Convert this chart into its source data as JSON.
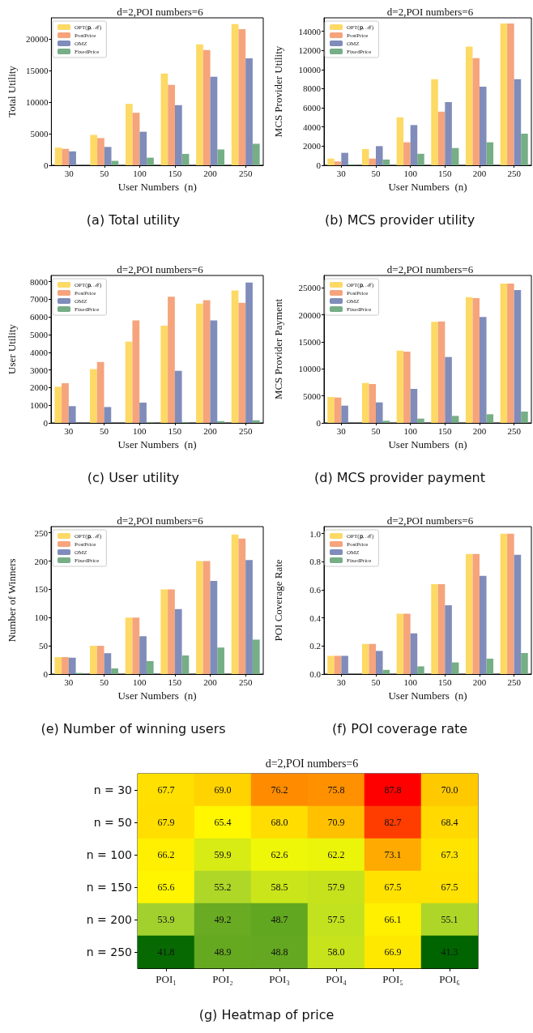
{
  "chart_data": [
    {
      "type": "bar",
      "title": "d=2,POI numbers=6",
      "xlabel": "User Numbers  (n)",
      "ylabel": "Total Utility",
      "categories": [
        "30",
        "50",
        "100",
        "150",
        "200",
        "250"
      ],
      "legend": "top left",
      "ylim": [
        0,
        23300
      ],
      "yticks": [
        0,
        5000,
        10000,
        15000,
        20000
      ],
      "annotations": [
        "(a)  Total utility"
      ],
      "series": [
        {
          "name": "OPT(𝐩, ℳ)",
          "color": "#fdd966",
          "values": [
            2800,
            4800,
            9700,
            14500,
            19100,
            22300
          ]
        },
        {
          "name": "PostPrice",
          "color": "#f5a47c",
          "values": [
            2600,
            4300,
            8300,
            12700,
            18200,
            21500
          ]
        },
        {
          "name": "OMZ",
          "color": "#808cba",
          "values": [
            2200,
            2900,
            5300,
            9500,
            14000,
            16900
          ]
        },
        {
          "name": "FixedPrice",
          "color": "#76ae86",
          "values": [
            0,
            700,
            1200,
            1800,
            2500,
            3400
          ]
        }
      ]
    },
    {
      "type": "bar",
      "title": "d=2,POI numbers=6",
      "xlabel": "User Numbers  (n)",
      "ylabel": "MCS Provider Utility",
      "categories": [
        "30",
        "50",
        "100",
        "150",
        "200",
        "250"
      ],
      "legend": "top left",
      "ylim": [
        0,
        15400
      ],
      "yticks": [
        0,
        2000,
        4000,
        6000,
        8000,
        10000,
        12000,
        14000
      ],
      "annotations": [
        "(b)  MCS provider utility"
      ],
      "series": [
        {
          "name": "OPT(𝐩, ℳ)",
          "color": "#fdd966",
          "values": [
            700,
            1700,
            5000,
            9000,
            12400,
            14800
          ]
        },
        {
          "name": "PostPrice",
          "color": "#f5a47c",
          "values": [
            400,
            700,
            2400,
            5600,
            11200,
            14800
          ]
        },
        {
          "name": "OMZ",
          "color": "#808cba",
          "values": [
            1300,
            2000,
            4200,
            6600,
            8200,
            9000
          ]
        },
        {
          "name": "FixedPrice",
          "color": "#76ae86",
          "values": [
            100,
            600,
            1200,
            1800,
            2400,
            3300
          ]
        }
      ]
    },
    {
      "type": "bar",
      "title": "d=2,POI numbers=6",
      "xlabel": "User Numbers  (n)",
      "ylabel": "User Utility",
      "categories": [
        "30",
        "50",
        "100",
        "150",
        "200",
        "250"
      ],
      "legend": "top left",
      "ylim": [
        0,
        8350
      ],
      "yticks": [
        0,
        1000,
        2000,
        3000,
        4000,
        5000,
        6000,
        7000,
        8000
      ],
      "annotations": [
        "(c)  User utility"
      ],
      "series": [
        {
          "name": "OPT(𝐩, ℳ)",
          "color": "#fdd966",
          "values": [
            2050,
            3050,
            4600,
            5500,
            6750,
            7500
          ]
        },
        {
          "name": "PostPrice",
          "color": "#f5a47c",
          "values": [
            2250,
            3450,
            5800,
            7150,
            6950,
            6800
          ]
        },
        {
          "name": "OMZ",
          "color": "#808cba",
          "values": [
            950,
            900,
            1150,
            2950,
            5800,
            7950
          ]
        },
        {
          "name": "FixedPrice",
          "color": "#76ae86",
          "values": [
            0,
            0,
            50,
            50,
            100,
            150
          ]
        }
      ]
    },
    {
      "type": "bar",
      "title": "d=2,POI numbers=6",
      "xlabel": "User Numbers  (n)",
      "ylabel": "MCS Provider Payment",
      "categories": [
        "30",
        "50",
        "100",
        "150",
        "200",
        "250"
      ],
      "legend": "top left",
      "ylim": [
        0,
        27300
      ],
      "yticks": [
        0,
        5000,
        10000,
        15000,
        20000,
        25000
      ],
      "annotations": [
        "(d)  MCS provider payment"
      ],
      "series": [
        {
          "name": "OPT(𝐩, ℳ)",
          "color": "#fdd966",
          "values": [
            4800,
            7400,
            13400,
            18700,
            23300,
            25800
          ]
        },
        {
          "name": "PostPrice",
          "color": "#f5a47c",
          "values": [
            4700,
            7200,
            13200,
            18800,
            23100,
            25800
          ]
        },
        {
          "name": "OMZ",
          "color": "#808cba",
          "values": [
            3200,
            3800,
            6300,
            12200,
            19600,
            24600
          ]
        },
        {
          "name": "FixedPrice",
          "color": "#76ae86",
          "values": [
            0,
            400,
            800,
            1300,
            1600,
            2100
          ]
        }
      ]
    },
    {
      "type": "bar",
      "title": "d=2,POI numbers=6",
      "xlabel": "User Numbers  (n)",
      "ylabel": "Number of Winners",
      "categories": [
        "30",
        "50",
        "100",
        "150",
        "200",
        "250"
      ],
      "legend": "top left",
      "ylim": [
        0,
        261
      ],
      "yticks": [
        0,
        50,
        100,
        150,
        200,
        250
      ],
      "annotations": [
        "(e)  Number of winning users"
      ],
      "series": [
        {
          "name": "OPT(𝐩, ℳ)",
          "color": "#fdd966",
          "values": [
            30,
            50,
            100,
            150,
            200,
            247
          ]
        },
        {
          "name": "PostPrice",
          "color": "#f5a47c",
          "values": [
            30,
            50,
            100,
            150,
            200,
            240
          ]
        },
        {
          "name": "OMZ",
          "color": "#808cba",
          "values": [
            29,
            37,
            67,
            115,
            165,
            202
          ]
        },
        {
          "name": "FixedPrice",
          "color": "#76ae86",
          "values": [
            2,
            10,
            23,
            33,
            47,
            61
          ]
        }
      ]
    },
    {
      "type": "bar",
      "title": "d=2,POI numbers=6",
      "xlabel": "User Numbers  (n)",
      "ylabel": "POI Coverage Rate",
      "categories": [
        "30",
        "50",
        "100",
        "150",
        "200",
        "250"
      ],
      "legend": "top left",
      "ylim": [
        0,
        1.05
      ],
      "yticks": [
        {
          "value": 0,
          "label": "0.0"
        },
        0.2,
        0.4,
        0.6,
        0.8,
        {
          "value": 1,
          "label": "1.0"
        }
      ],
      "annotations": [
        "(f)  POI coverage rate"
      ],
      "series": [
        {
          "name": "OPT(𝐩, ℳ)",
          "color": "#fdd966",
          "values": [
            0.13,
            0.215,
            0.43,
            0.64,
            0.855,
            1.0
          ]
        },
        {
          "name": "PostPrice",
          "color": "#f5a47c",
          "values": [
            0.13,
            0.215,
            0.43,
            0.64,
            0.855,
            1.0
          ]
        },
        {
          "name": "OMZ",
          "color": "#808cba",
          "values": [
            0.13,
            0.165,
            0.29,
            0.49,
            0.7,
            0.85
          ]
        },
        {
          "name": "FixedPrice",
          "color": "#76ae86",
          "values": [
            0,
            0.03,
            0.055,
            0.083,
            0.11,
            0.15
          ]
        }
      ]
    },
    {
      "type": "heatmap",
      "title": "d=2,POI numbers=6",
      "categories": [
        "POI₁",
        "POI₂",
        "POI₃",
        "POI₄",
        "POI₅",
        "POI₆"
      ],
      "y_categories": [
        "n = 30",
        "n = 50",
        "n = 100",
        "n = 150",
        "n = 200",
        "n = 250"
      ],
      "data_labels": true,
      "annotations": [
        "(g)  Heatmap of price"
      ],
      "cells": [
        [
          67.7,
          69.0,
          76.2,
          75.8,
          87.8,
          70.0
        ],
        [
          67.9,
          65.4,
          68.0,
          70.9,
          82.7,
          68.4
        ],
        [
          66.2,
          59.9,
          62.6,
          62.2,
          73.1,
          67.3
        ],
        [
          65.6,
          55.2,
          58.5,
          57.9,
          67.5,
          67.5
        ],
        [
          53.9,
          49.2,
          48.7,
          57.5,
          66.1,
          55.1
        ],
        [
          41.8,
          48.9,
          48.8,
          58.0,
          66.9,
          41.3
        ]
      ],
      "cell_labels": [
        [
          "67.7",
          "69.0",
          "76.2",
          "75.8",
          "87.8",
          "70.0"
        ],
        [
          "67.9",
          "65.4",
          "68.0",
          "70.9",
          "82.7",
          "68.4"
        ],
        [
          "66.2",
          "59.9",
          "62.6",
          "62.2",
          "73.1",
          "67.3"
        ],
        [
          "65.6",
          "55.2",
          "58.5",
          "57.9",
          "67.5",
          "67.5"
        ],
        [
          "53.9",
          "49.2",
          "48.7",
          "57.5",
          "66.1",
          "55.1"
        ],
        [
          "41.8",
          "48.9",
          "48.8",
          "58.0",
          "66.9",
          "41.3"
        ]
      ]
    }
  ]
}
